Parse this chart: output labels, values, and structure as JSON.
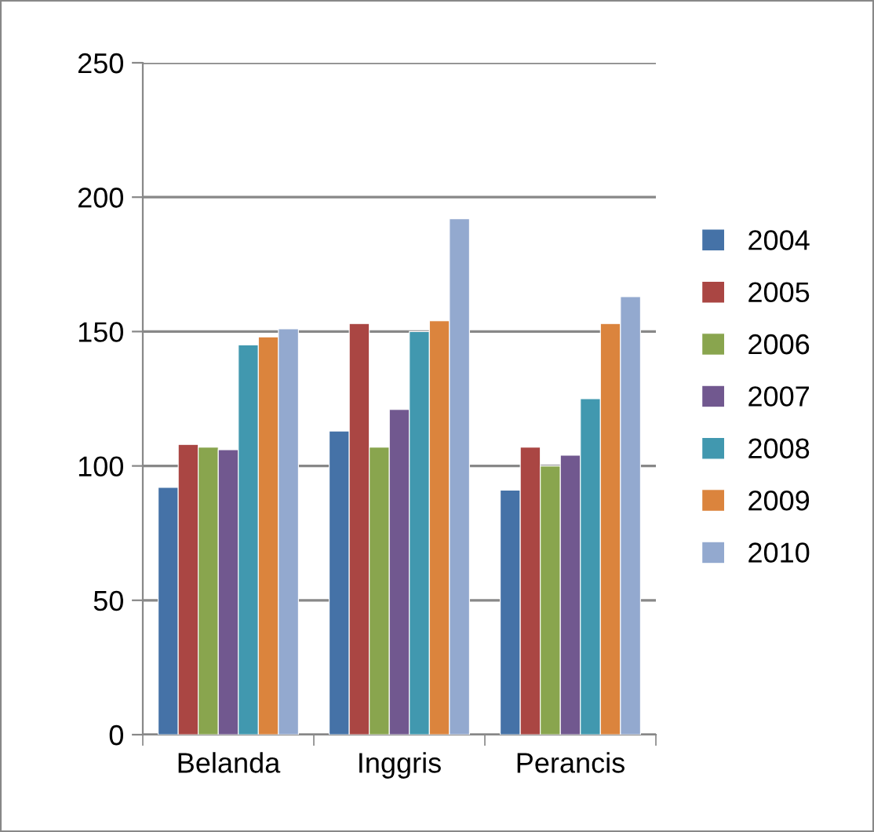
{
  "chart_data": {
    "type": "bar",
    "categories": [
      "Belanda",
      "Inggris",
      "Perancis"
    ],
    "series": [
      {
        "name": "2004",
        "color": "#4572a7",
        "values": [
          92,
          113,
          91
        ]
      },
      {
        "name": "2005",
        "color": "#aa4643",
        "values": [
          108,
          153,
          107
        ]
      },
      {
        "name": "2006",
        "color": "#89a54e",
        "values": [
          107,
          107,
          100
        ]
      },
      {
        "name": "2007",
        "color": "#71588f",
        "values": [
          106,
          121,
          104
        ]
      },
      {
        "name": "2008",
        "color": "#4198af",
        "values": [
          145,
          150,
          125
        ]
      },
      {
        "name": "2009",
        "color": "#db843d",
        "values": [
          148,
          154,
          153
        ]
      },
      {
        "name": "2010",
        "color": "#93a9cf",
        "values": [
          151,
          192,
          163
        ]
      }
    ],
    "ylim": [
      0,
      250
    ],
    "yticks": [
      0,
      50,
      100,
      150,
      200,
      250
    ],
    "grid": "y",
    "legend": "right"
  }
}
